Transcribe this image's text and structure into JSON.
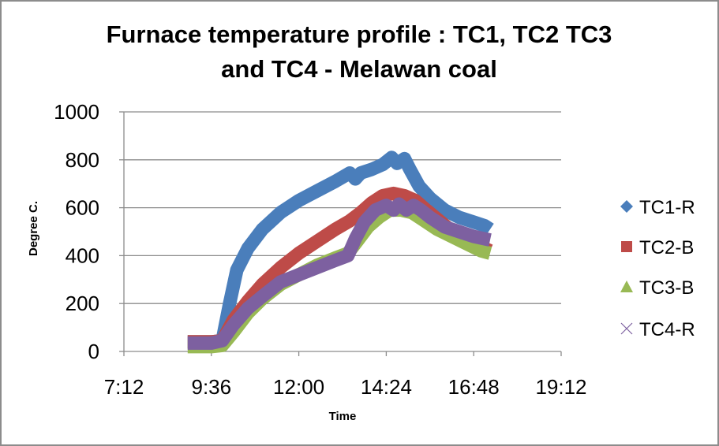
{
  "chart_data": {
    "type": "line",
    "title_lines": [
      "Furnace temperature profile : TC1, TC2 TC3",
      "and TC4 - Melawan coal"
    ],
    "xlabel": "Time",
    "ylabel": "Degree C.",
    "xlim_hours": [
      7.2,
      19.2
    ],
    "ylim": [
      0,
      1000
    ],
    "x_tick_labels": [
      "7:12",
      "9:36",
      "12:00",
      "14:24",
      "16:48",
      "19:12"
    ],
    "x_tick_hours": [
      7.2,
      9.6,
      12.0,
      14.4,
      16.8,
      19.2
    ],
    "y_tick_labels": [
      "0",
      "200",
      "400",
      "600",
      "800",
      "1000"
    ],
    "y_ticks": [
      0,
      200,
      400,
      600,
      800,
      1000
    ],
    "grid": "horizontal",
    "legend_position": "right",
    "series": [
      {
        "name": "TC1-R",
        "color": "#4a7ebb",
        "marker": "diamond",
        "x_hours": [
          8.95,
          9.6,
          9.9,
          10.1,
          10.3,
          10.6,
          11.0,
          11.5,
          12.0,
          12.5,
          13.0,
          13.4,
          13.55,
          13.7,
          14.0,
          14.3,
          14.55,
          14.7,
          14.9,
          15.05,
          15.3,
          15.6,
          16.0,
          16.4,
          16.8,
          17.1,
          17.25
        ],
        "y": [
          40,
          40,
          45,
          200,
          340,
          430,
          510,
          580,
          630,
          670,
          710,
          745,
          720,
          745,
          760,
          780,
          810,
          785,
          805,
          760,
          690,
          640,
          590,
          560,
          540,
          525,
          510
        ]
      },
      {
        "name": "TC2-B",
        "color": "#be4b48",
        "marker": "square",
        "x_hours": [
          8.95,
          9.6,
          9.9,
          10.2,
          10.6,
          11.0,
          11.5,
          12.0,
          12.5,
          13.0,
          13.4,
          13.7,
          14.0,
          14.3,
          14.6,
          14.9,
          15.2,
          15.5,
          15.9,
          16.3,
          16.8,
          17.1,
          17.25
        ],
        "y": [
          40,
          40,
          45,
          130,
          210,
          280,
          350,
          410,
          460,
          510,
          545,
          580,
          620,
          650,
          660,
          650,
          630,
          590,
          540,
          490,
          450,
          430,
          420
        ]
      },
      {
        "name": "TC3-B",
        "color": "#98b954",
        "marker": "triangle",
        "x_hours": [
          8.95,
          9.6,
          9.9,
          10.2,
          10.6,
          11.0,
          11.5,
          12.0,
          12.5,
          13.0,
          13.35,
          13.6,
          13.9,
          14.2,
          14.5,
          14.8,
          15.1,
          15.4,
          15.8,
          16.2,
          16.6,
          17.0,
          17.25
        ],
        "y": [
          20,
          20,
          25,
          80,
          160,
          220,
          280,
          320,
          360,
          390,
          410,
          460,
          520,
          560,
          590,
          590,
          580,
          550,
          510,
          480,
          450,
          420,
          410
        ]
      },
      {
        "name": "TC4-R",
        "color": "#7d60a0",
        "marker": "x",
        "x_hours": [
          8.95,
          9.6,
          9.9,
          10.2,
          10.6,
          11.0,
          11.5,
          12.0,
          12.5,
          13.0,
          13.35,
          13.55,
          13.8,
          14.1,
          14.4,
          14.6,
          14.75,
          14.95,
          15.15,
          15.35,
          15.6,
          16.0,
          16.4,
          16.8,
          17.1,
          17.25
        ],
        "y": [
          35,
          35,
          45,
          110,
          180,
          230,
          290,
          320,
          350,
          380,
          400,
          470,
          540,
          590,
          610,
          590,
          615,
          590,
          610,
          590,
          560,
          520,
          500,
          480,
          470,
          465
        ]
      }
    ]
  }
}
